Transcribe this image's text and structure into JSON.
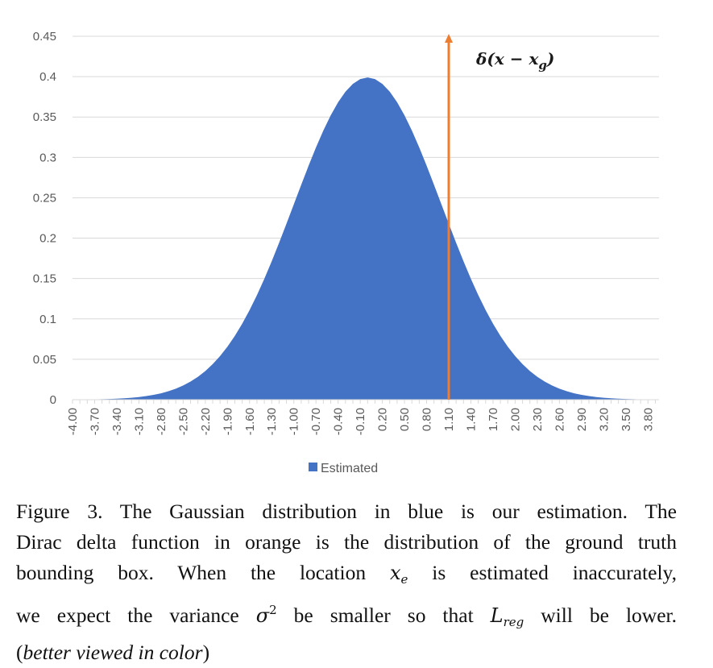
{
  "chart_data": {
    "type": "area",
    "series": [
      {
        "name": "Estimated",
        "color": "#4472C4",
        "mean": 0.0,
        "std": 1.0
      }
    ],
    "x_tick_labels": [
      "-4.00",
      "-3.70",
      "-3.40",
      "-3.10",
      "-2.80",
      "-2.50",
      "-2.20",
      "-1.90",
      "-1.60",
      "-1.30",
      "-1.00",
      "-0.70",
      "-0.40",
      "-0.10",
      "0.20",
      "0.50",
      "0.80",
      "1.10",
      "1.40",
      "1.70",
      "2.00",
      "2.30",
      "2.60",
      "2.90",
      "3.20",
      "3.50",
      "3.80"
    ],
    "xlim": [
      -4.0,
      3.95
    ],
    "y_tick_labels": [
      "0",
      "0.05",
      "0.1",
      "0.15",
      "0.2",
      "0.25",
      "0.3",
      "0.35",
      "0.4",
      "0.45"
    ],
    "ylim": [
      0,
      0.45
    ],
    "grid": true,
    "legend": {
      "position": "bottom",
      "label": "Estimated"
    },
    "annotation": {
      "type": "arrow",
      "x": 1.1,
      "color": "#ED7D31",
      "label": "δ(x − x_g)",
      "label_parts": {
        "main": "δ(",
        "x1": "x",
        "minus": " − ",
        "x2": "x",
        "sub": "g",
        "close": ")"
      }
    }
  },
  "caption": {
    "line1": "Figure 3. The Gaussian distribution in blue is our estimation. The",
    "line2": "Dirac delta function in orange is the distribution of the ground truth",
    "line3_a": "bounding box.  When the location ",
    "line3_var": "x",
    "line3_sub": "e",
    "line3_b": " is estimated inaccurately,",
    "line4_a": "we expect the variance ",
    "line4_var": "σ",
    "line4_sup": "2",
    "line4_b": " be smaller so that ",
    "line4_var2": "L",
    "line4_sub2": "reg",
    "line4_c": " will be lower.",
    "line5_open": "(",
    "line5_italic": "better viewed in color",
    "line5_close": ")"
  }
}
